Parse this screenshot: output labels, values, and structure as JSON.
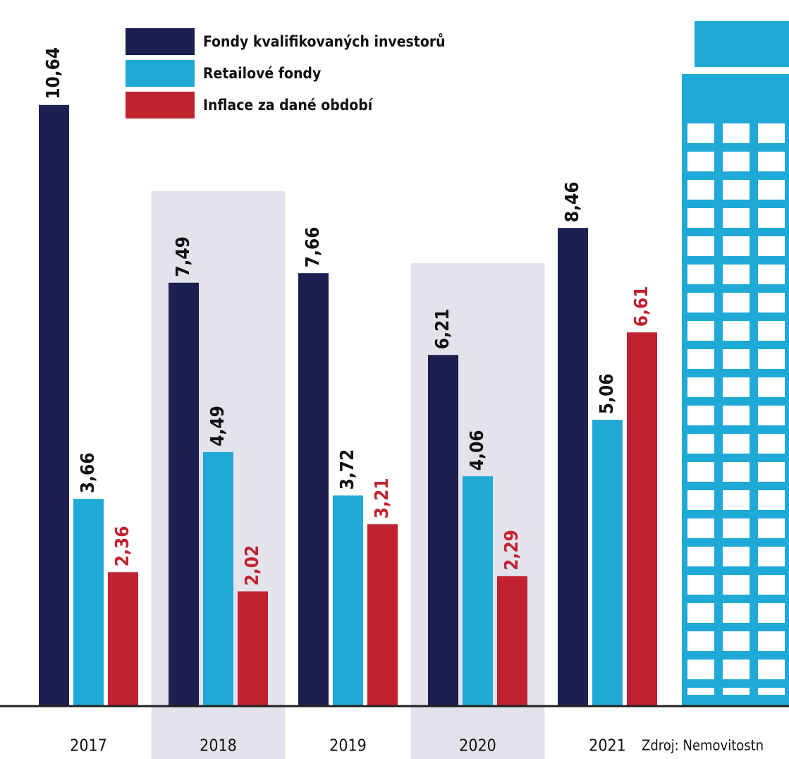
{
  "chart_data": {
    "type": "bar",
    "categories": [
      "2017",
      "2018",
      "2019",
      "2020",
      "2021"
    ],
    "series": [
      {
        "name": "Fondy kvalifikovaných investorů",
        "color": "#1c1f50",
        "values": [
          10.64,
          7.49,
          7.66,
          6.21,
          8.46
        ],
        "value_labels": [
          "10,64",
          "7,49",
          "7,66",
          "6,21",
          "8,46"
        ]
      },
      {
        "name": "Retailové fondy",
        "color": "#1fa9d6",
        "values": [
          3.66,
          4.49,
          3.72,
          4.06,
          5.06
        ],
        "value_labels": [
          "3,66",
          "4,49",
          "3,72",
          "4,06",
          "5,06"
        ]
      },
      {
        "name": "Inflace za dané období",
        "color": "#c0232f",
        "values": [
          2.36,
          2.02,
          3.21,
          2.29,
          6.61
        ],
        "value_labels": [
          "2,36",
          "2,02",
          "3,21",
          "2,29",
          "6,61"
        ]
      }
    ],
    "ylim": [
      0,
      12.5
    ],
    "source": "Zdroj: Nemovitostn"
  }
}
